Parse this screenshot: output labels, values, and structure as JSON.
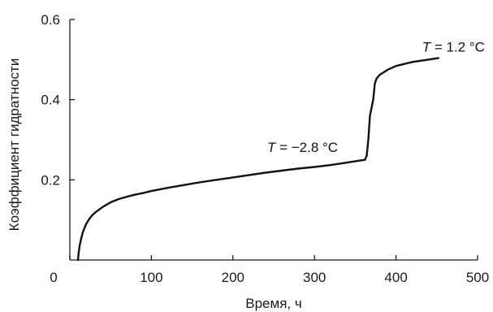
{
  "chart_data": {
    "type": "line",
    "title": "",
    "xlabel": "Время, ч",
    "ylabel": "Коэффициент гидратности",
    "xlim": [
      0,
      500
    ],
    "ylim": [
      0,
      0.6
    ],
    "x_ticks": [
      0,
      100,
      200,
      300,
      400,
      500
    ],
    "y_ticks": [
      0.2,
      0.4,
      0.6
    ],
    "x_tick_labels": [
      "0",
      "100",
      "200",
      "300",
      "400",
      "500"
    ],
    "y_tick_labels": [
      "0.2",
      "0.4",
      "0.6"
    ],
    "grid": false,
    "legend": "none",
    "series": [
      {
        "x": [
          10,
          11,
          12,
          14,
          16,
          18,
          20,
          24,
          28,
          32,
          40,
          50,
          60,
          70,
          80,
          90,
          100,
          120,
          140,
          160,
          180,
          200,
          220,
          240,
          260,
          280,
          300,
          320,
          340,
          355,
          362,
          364,
          366,
          368,
          370,
          372,
          374,
          376,
          378,
          380,
          390,
          400,
          420,
          440,
          452
        ],
        "y": [
          0.0,
          0.02,
          0.035,
          0.055,
          0.07,
          0.08,
          0.09,
          0.103,
          0.113,
          0.12,
          0.132,
          0.144,
          0.152,
          0.158,
          0.163,
          0.167,
          0.172,
          0.18,
          0.187,
          0.194,
          0.2,
          0.206,
          0.212,
          0.218,
          0.223,
          0.228,
          0.232,
          0.237,
          0.243,
          0.248,
          0.25,
          0.26,
          0.3,
          0.36,
          0.38,
          0.4,
          0.44,
          0.452,
          0.457,
          0.462,
          0.475,
          0.484,
          0.494,
          0.5,
          0.504
        ]
      }
    ],
    "annotations": [
      {
        "label_italic": "T",
        "text": " = −2.8 °C",
        "x": 242,
        "y": 0.27
      },
      {
        "label_italic": "T",
        "text": " = 1.2 °C",
        "x": 432,
        "y": 0.52
      }
    ]
  }
}
